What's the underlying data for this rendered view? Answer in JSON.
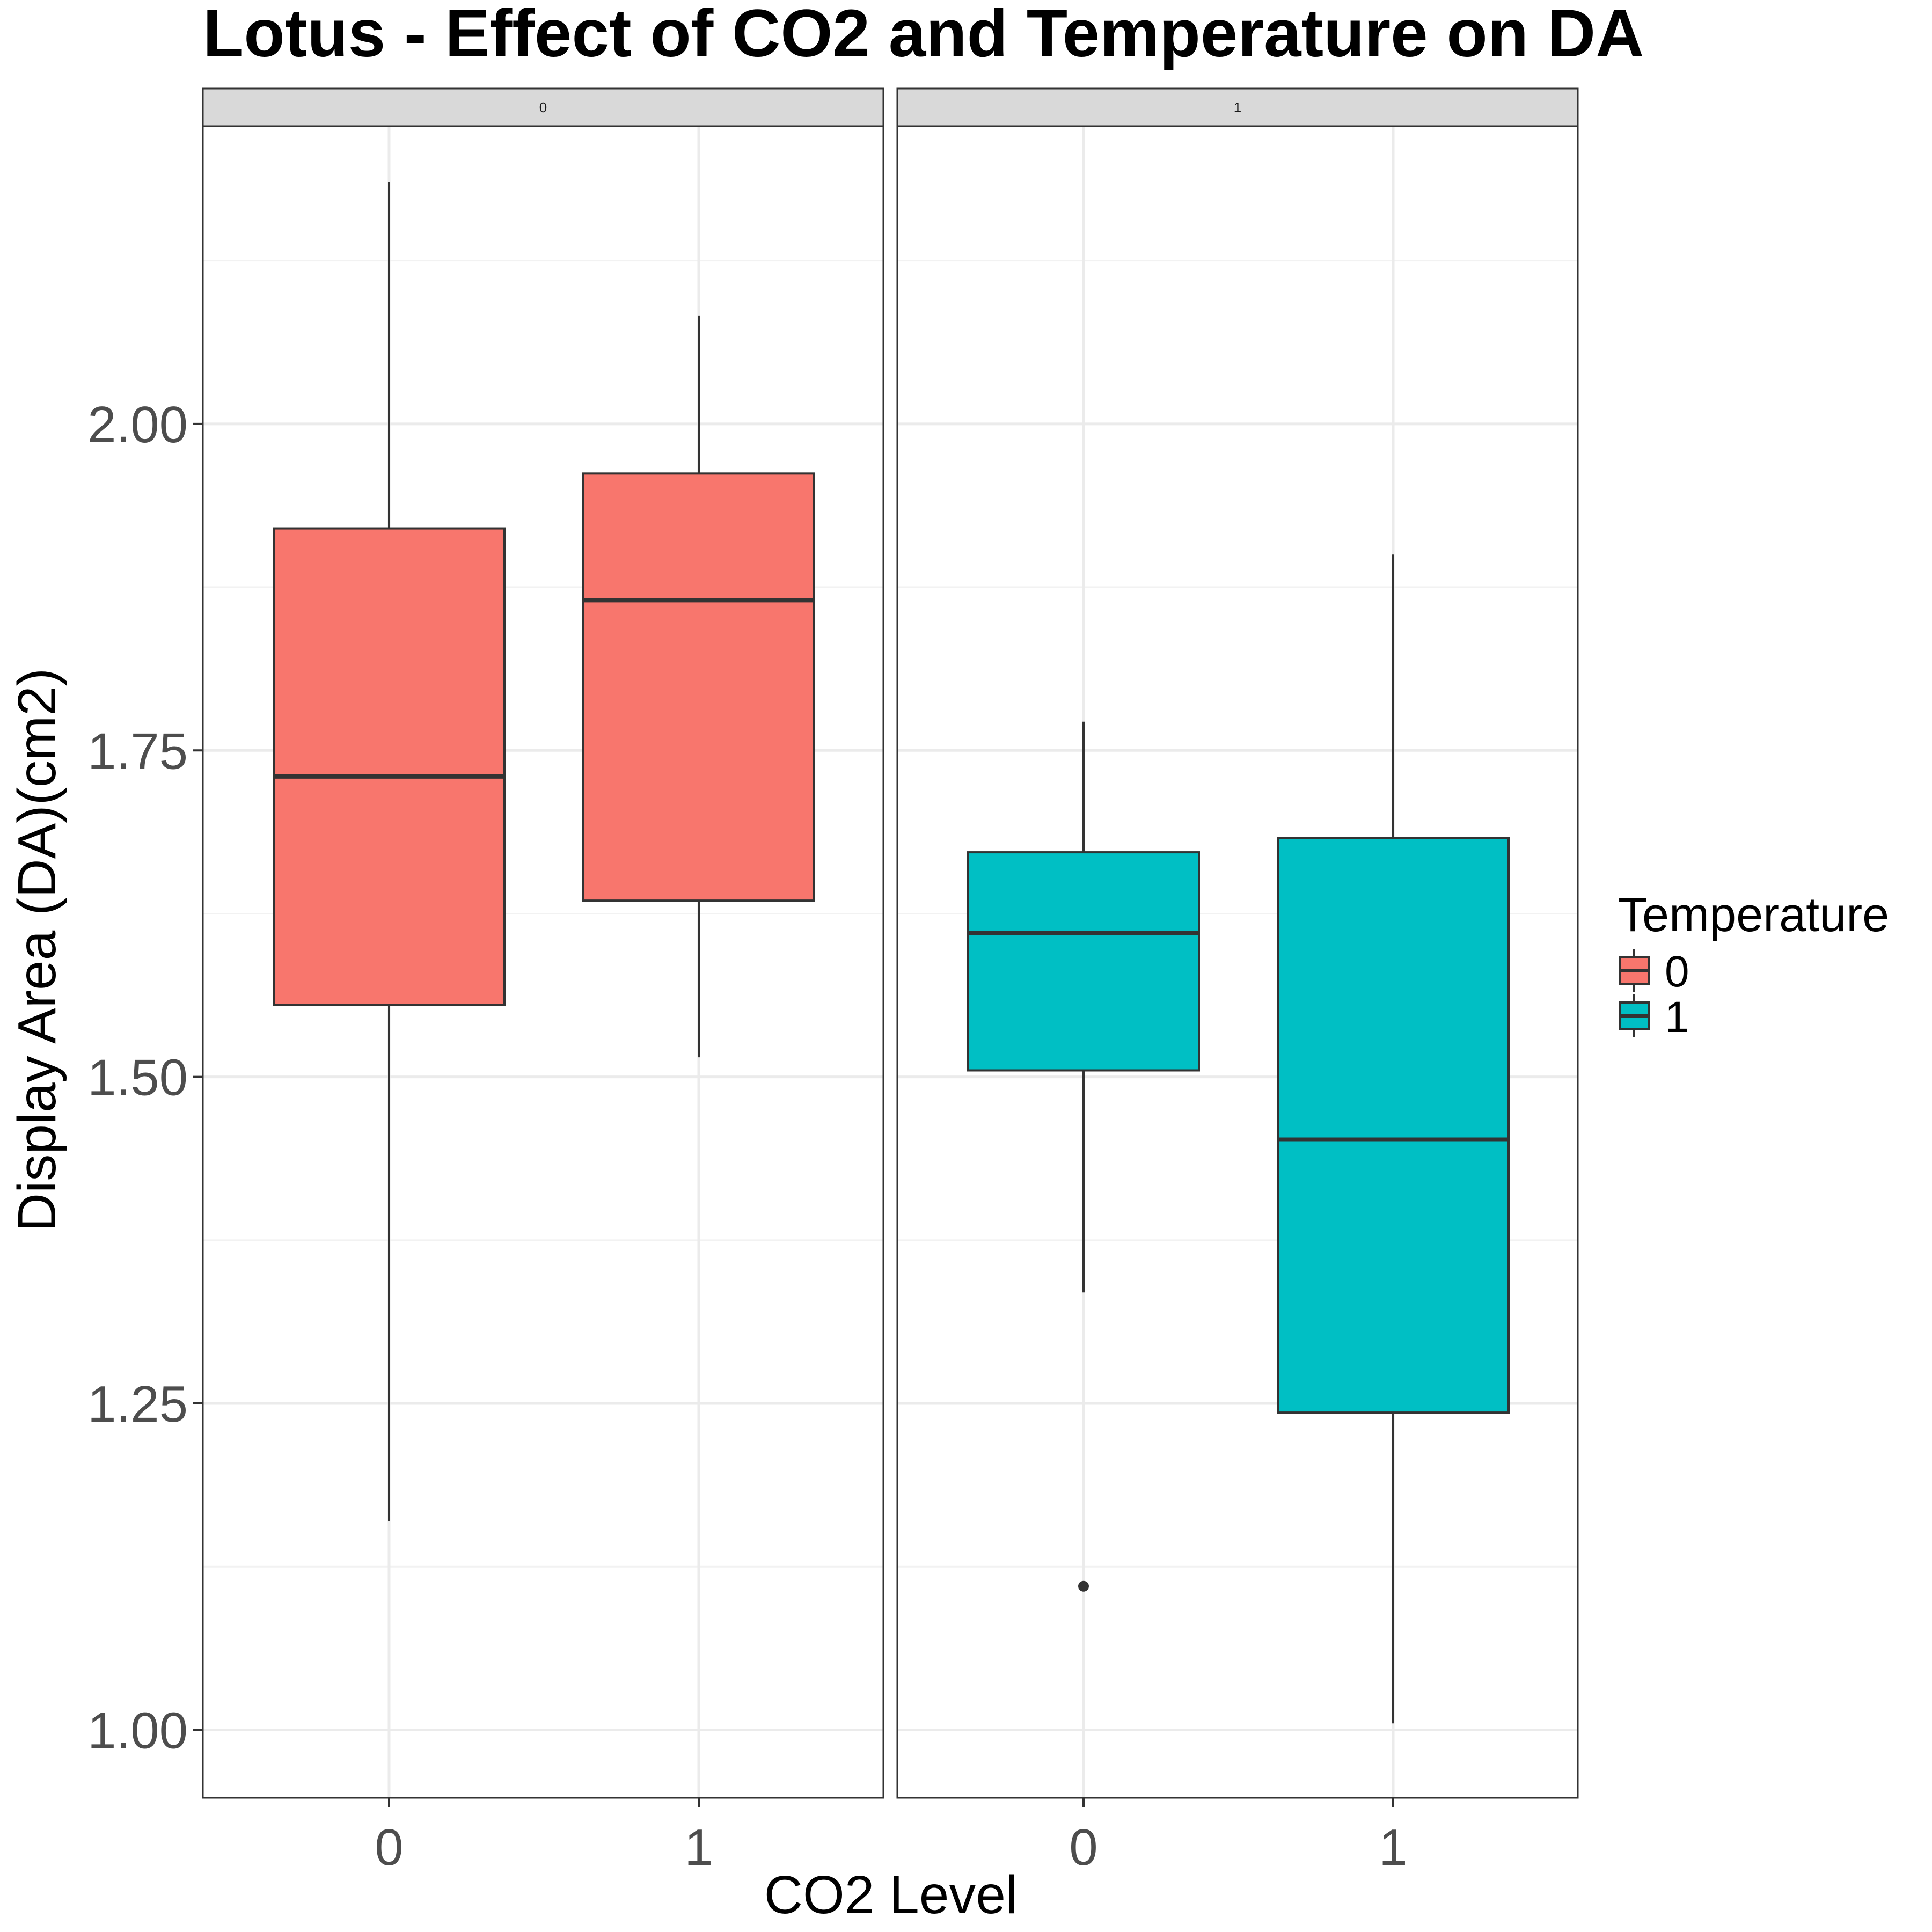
{
  "chart_data": {
    "type": "box",
    "title": "Lotus - Effect of CO2 and Temperature on DA",
    "xlabel": "CO2 Level",
    "ylabel": "Display Area (DA)(cm2)",
    "ylim": [
      0.948,
      2.228
    ],
    "y_ticks": [
      1.0,
      1.25,
      1.5,
      1.75,
      2.0
    ],
    "y_tick_labels": [
      "1.00",
      "1.25",
      "1.50",
      "1.75",
      "2.00"
    ],
    "facet_variable": "Temperature",
    "categories": [
      "0",
      "1"
    ],
    "grid": true,
    "legend": {
      "title": "Temperature",
      "position": "right",
      "entries": [
        {
          "label": "0",
          "color": "#F8766D"
        },
        {
          "label": "1",
          "color": "#00BFC4"
        }
      ]
    },
    "panels": [
      {
        "strip_label": "0",
        "temperature": "0",
        "color": "#F8766D",
        "boxes": [
          {
            "x": "0",
            "whisker_low": 1.16,
            "q1": 1.555,
            "median": 1.73,
            "q3": 1.92,
            "whisker_high": 2.185,
            "outliers": []
          },
          {
            "x": "1",
            "whisker_low": 1.515,
            "q1": 1.635,
            "median": 1.865,
            "q3": 1.962,
            "whisker_high": 2.083,
            "outliers": []
          }
        ]
      },
      {
        "strip_label": "1",
        "temperature": "1",
        "color": "#00BFC4",
        "boxes": [
          {
            "x": "0",
            "whisker_low": 1.335,
            "q1": 1.505,
            "median": 1.61,
            "q3": 1.672,
            "whisker_high": 1.772,
            "outliers": [
              1.11
            ]
          },
          {
            "x": "1",
            "whisker_low": 1.005,
            "q1": 1.243,
            "median": 1.452,
            "q3": 1.683,
            "whisker_high": 1.9,
            "outliers": []
          }
        ]
      }
    ]
  }
}
